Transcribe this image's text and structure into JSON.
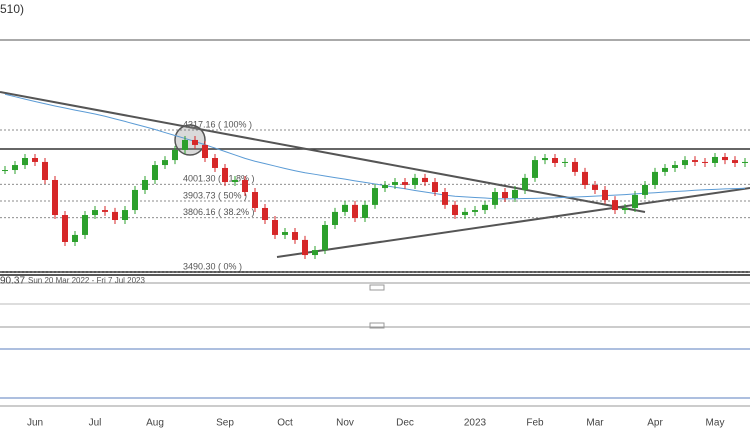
{
  "chart_data": {
    "type": "candlestick",
    "title": "510)",
    "indicator_value": "90.37",
    "date_range": "Sun 20 Mar 2022 - Fri 7 Jul 2023",
    "categories": [
      null,
      null,
      null,
      "Jun",
      null,
      null,
      null,
      null,
      null,
      "Jul",
      null,
      null,
      null,
      null,
      null,
      "Aug",
      null,
      null,
      null,
      null,
      null,
      null,
      "Sep",
      null,
      null,
      null,
      null,
      null,
      "Oct",
      null,
      null,
      null,
      null,
      null,
      "Nov",
      null,
      null,
      null,
      null,
      null,
      "Dec",
      null,
      null,
      null,
      null,
      null,
      null,
      "2023",
      null,
      null,
      null,
      null,
      null,
      "Feb",
      null,
      null,
      null,
      null,
      null,
      "Mar",
      null,
      null,
      null,
      null,
      null,
      "Apr",
      null,
      null,
      null,
      null,
      null,
      "May",
      null,
      null,
      null
    ],
    "up_color": "#2ca02c",
    "down_color": "#d62728",
    "series": [
      {
        "values": [
          4084,
          4113,
          4154,
          4131,
          4026,
          3822,
          3665,
          3706,
          3822,
          3851,
          3840,
          3793,
          3851,
          3968,
          4026,
          4113,
          4142,
          4201,
          4259,
          4230,
          4154,
          4096,
          4014,
          4026,
          3956,
          3863,
          3793,
          3706,
          3723,
          3677,
          3589,
          3618,
          3764,
          3840,
          3881,
          3805,
          3881,
          3979,
          3997,
          4014,
          3997,
          4038,
          4014,
          3956,
          3881,
          3822,
          3840,
          3851,
          3881,
          3956,
          3921,
          3968,
          4038,
          4142,
          4154,
          4125,
          4131,
          4073,
          3997,
          3968,
          3909,
          3851,
          3863,
          3939,
          3997,
          4073,
          4096,
          4113,
          4142,
          4131,
          4125,
          4160,
          4142,
          4125,
          4131
        ]
      }
    ],
    "moving_average": {
      "color": "#5b9bd5",
      "values": [
        4525,
        4511,
        4497,
        4483,
        4470,
        4457,
        4445,
        4433,
        4422,
        4410,
        4397,
        4382,
        4367,
        4351,
        4336,
        4320,
        4302,
        4285,
        4268,
        4250,
        4231,
        4212,
        4192,
        4172,
        4152,
        4135,
        4121,
        4107,
        4093,
        4080,
        4068,
        4059,
        4049,
        4040,
        4031,
        4021,
        4012,
        4003,
        3993,
        3984,
        3975,
        3965,
        3956,
        3947,
        3938,
        3931,
        3928,
        3924,
        3921,
        3917,
        3916,
        3917,
        3918,
        3919,
        3921,
        3922,
        3925,
        3927,
        3929,
        3932,
        3935,
        3938,
        3941,
        3945,
        3949,
        3952,
        3956,
        3959,
        3962,
        3966,
        3969,
        3971,
        3974,
        3976,
        3978
      ]
    },
    "fib_levels": [
      {
        "value": 4317.16,
        "label": "4317.16 ( 100% )"
      },
      {
        "value": 4001.3,
        "label": "4001.30 ( 61.8% )"
      },
      {
        "value": 3903.73,
        "label": "3903.73 ( 50% )"
      },
      {
        "value": 3806.16,
        "label": "3806.16 ( 38.2% )"
      },
      {
        "value": 3490.3,
        "label": "3490.30 ( 0% )"
      }
    ],
    "ylim": [
      3432,
      5074
    ]
  }
}
